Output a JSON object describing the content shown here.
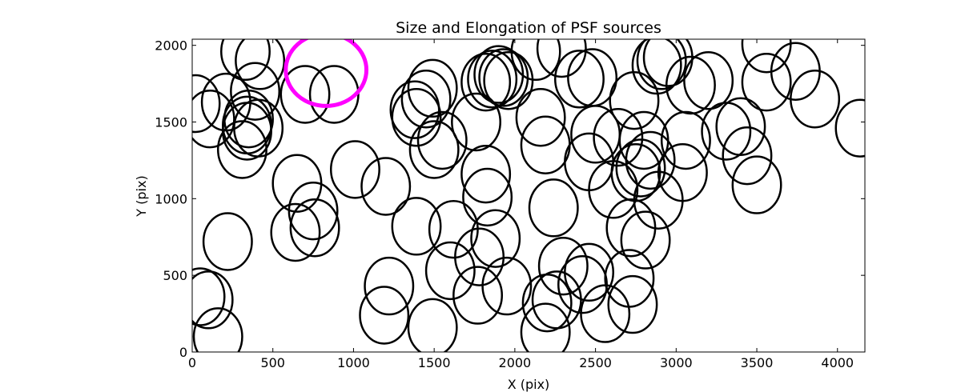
{
  "chart_data": {
    "type": "scatter",
    "marker": "ellipse",
    "title": "Size and Elongation of PSF sources",
    "xlabel": "X (pix)",
    "ylabel": "Y (pix)",
    "xlim": [
      0,
      4170
    ],
    "ylim": [
      0,
      2040
    ],
    "xticks": [
      0,
      500,
      1000,
      1500,
      2000,
      2500,
      3000,
      3500,
      4000
    ],
    "yticks": [
      0,
      500,
      1000,
      1500,
      2000
    ],
    "xtick_labels": [
      "0",
      "500",
      "1000",
      "1500",
      "2000",
      "2500",
      "3000",
      "3500",
      "4000"
    ],
    "ytick_labels": [
      "0",
      "500",
      "1000",
      "1500",
      "2000"
    ],
    "colors": {
      "sources": "#000000",
      "highlight": "#ff00ff"
    },
    "highlight": {
      "x": 830,
      "y": 1840,
      "w": 500,
      "h": 470
    },
    "sources": [
      {
        "x": 20,
        "y": 1620,
        "w": 300,
        "h": 370
      },
      {
        "x": 210,
        "y": 1630,
        "w": 300,
        "h": 370
      },
      {
        "x": 110,
        "y": 1520,
        "w": 300,
        "h": 370
      },
      {
        "x": 330,
        "y": 1960,
        "w": 300,
        "h": 370
      },
      {
        "x": 420,
        "y": 1900,
        "w": 300,
        "h": 370
      },
      {
        "x": 390,
        "y": 1700,
        "w": 300,
        "h": 370
      },
      {
        "x": 350,
        "y": 1520,
        "w": 300,
        "h": 370
      },
      {
        "x": 340,
        "y": 1480,
        "w": 300,
        "h": 370
      },
      {
        "x": 340,
        "y": 1440,
        "w": 300,
        "h": 370
      },
      {
        "x": 410,
        "y": 1460,
        "w": 300,
        "h": 370
      },
      {
        "x": 310,
        "y": 1320,
        "w": 300,
        "h": 370
      },
      {
        "x": 700,
        "y": 1680,
        "w": 300,
        "h": 370
      },
      {
        "x": 880,
        "y": 1680,
        "w": 300,
        "h": 370
      },
      {
        "x": 1010,
        "y": 1190,
        "w": 300,
        "h": 370
      },
      {
        "x": 650,
        "y": 1100,
        "w": 300,
        "h": 370
      },
      {
        "x": 750,
        "y": 920,
        "w": 300,
        "h": 370
      },
      {
        "x": 640,
        "y": 780,
        "w": 300,
        "h": 370
      },
      {
        "x": 760,
        "y": 810,
        "w": 300,
        "h": 370
      },
      {
        "x": 220,
        "y": 720,
        "w": 300,
        "h": 370
      },
      {
        "x": 50,
        "y": 360,
        "w": 300,
        "h": 370
      },
      {
        "x": 100,
        "y": 340,
        "w": 300,
        "h": 370
      },
      {
        "x": 160,
        "y": 100,
        "w": 300,
        "h": 370
      },
      {
        "x": 1200,
        "y": 1080,
        "w": 300,
        "h": 370
      },
      {
        "x": 1380,
        "y": 1580,
        "w": 300,
        "h": 370
      },
      {
        "x": 1390,
        "y": 1530,
        "w": 300,
        "h": 370
      },
      {
        "x": 1450,
        "y": 1650,
        "w": 300,
        "h": 370
      },
      {
        "x": 1490,
        "y": 1720,
        "w": 300,
        "h": 370
      },
      {
        "x": 1500,
        "y": 1320,
        "w": 300,
        "h": 370
      },
      {
        "x": 1550,
        "y": 1380,
        "w": 300,
        "h": 370
      },
      {
        "x": 1390,
        "y": 820,
        "w": 300,
        "h": 370
      },
      {
        "x": 1620,
        "y": 800,
        "w": 300,
        "h": 370
      },
      {
        "x": 1220,
        "y": 430,
        "w": 300,
        "h": 370
      },
      {
        "x": 1190,
        "y": 240,
        "w": 300,
        "h": 370
      },
      {
        "x": 1490,
        "y": 160,
        "w": 300,
        "h": 370
      },
      {
        "x": 1600,
        "y": 530,
        "w": 300,
        "h": 370
      },
      {
        "x": 1780,
        "y": 620,
        "w": 300,
        "h": 370
      },
      {
        "x": 1770,
        "y": 370,
        "w": 300,
        "h": 370
      },
      {
        "x": 1950,
        "y": 430,
        "w": 300,
        "h": 370
      },
      {
        "x": 1880,
        "y": 740,
        "w": 300,
        "h": 370
      },
      {
        "x": 1820,
        "y": 1160,
        "w": 300,
        "h": 370
      },
      {
        "x": 1830,
        "y": 1010,
        "w": 300,
        "h": 370
      },
      {
        "x": 1760,
        "y": 1500,
        "w": 300,
        "h": 370
      },
      {
        "x": 1820,
        "y": 1760,
        "w": 300,
        "h": 370
      },
      {
        "x": 1860,
        "y": 1780,
        "w": 300,
        "h": 370
      },
      {
        "x": 1900,
        "y": 1810,
        "w": 300,
        "h": 370
      },
      {
        "x": 1930,
        "y": 1790,
        "w": 300,
        "h": 370
      },
      {
        "x": 1960,
        "y": 1770,
        "w": 300,
        "h": 370
      },
      {
        "x": 2130,
        "y": 1960,
        "w": 300,
        "h": 370
      },
      {
        "x": 2290,
        "y": 1980,
        "w": 300,
        "h": 370
      },
      {
        "x": 2400,
        "y": 1780,
        "w": 300,
        "h": 370
      },
      {
        "x": 2480,
        "y": 1790,
        "w": 300,
        "h": 370
      },
      {
        "x": 2160,
        "y": 1530,
        "w": 300,
        "h": 370
      },
      {
        "x": 2190,
        "y": 1350,
        "w": 300,
        "h": 370
      },
      {
        "x": 2240,
        "y": 940,
        "w": 300,
        "h": 370
      },
      {
        "x": 2300,
        "y": 560,
        "w": 300,
        "h": 370
      },
      {
        "x": 2460,
        "y": 520,
        "w": 300,
        "h": 370
      },
      {
        "x": 2420,
        "y": 440,
        "w": 300,
        "h": 370
      },
      {
        "x": 2200,
        "y": 320,
        "w": 300,
        "h": 370
      },
      {
        "x": 2260,
        "y": 340,
        "w": 300,
        "h": 370
      },
      {
        "x": 2190,
        "y": 130,
        "w": 300,
        "h": 370
      },
      {
        "x": 2560,
        "y": 250,
        "w": 300,
        "h": 370
      },
      {
        "x": 2730,
        "y": 310,
        "w": 300,
        "h": 370
      },
      {
        "x": 2710,
        "y": 480,
        "w": 300,
        "h": 370
      },
      {
        "x": 2810,
        "y": 730,
        "w": 300,
        "h": 370
      },
      {
        "x": 2720,
        "y": 810,
        "w": 300,
        "h": 370
      },
      {
        "x": 2610,
        "y": 1060,
        "w": 300,
        "h": 370
      },
      {
        "x": 2460,
        "y": 1240,
        "w": 300,
        "h": 370
      },
      {
        "x": 2500,
        "y": 1420,
        "w": 300,
        "h": 370
      },
      {
        "x": 2640,
        "y": 1400,
        "w": 300,
        "h": 370
      },
      {
        "x": 2740,
        "y": 1640,
        "w": 300,
        "h": 370
      },
      {
        "x": 2800,
        "y": 1380,
        "w": 300,
        "h": 370
      },
      {
        "x": 2780,
        "y": 1200,
        "w": 300,
        "h": 370
      },
      {
        "x": 2750,
        "y": 1170,
        "w": 300,
        "h": 370
      },
      {
        "x": 2840,
        "y": 1250,
        "w": 300,
        "h": 370
      },
      {
        "x": 2890,
        "y": 990,
        "w": 300,
        "h": 370
      },
      {
        "x": 3040,
        "y": 1170,
        "w": 300,
        "h": 370
      },
      {
        "x": 3060,
        "y": 1380,
        "w": 300,
        "h": 370
      },
      {
        "x": 2880,
        "y": 1870,
        "w": 300,
        "h": 370
      },
      {
        "x": 2910,
        "y": 1900,
        "w": 300,
        "h": 370
      },
      {
        "x": 2950,
        "y": 1920,
        "w": 300,
        "h": 370
      },
      {
        "x": 3090,
        "y": 1740,
        "w": 300,
        "h": 370
      },
      {
        "x": 3200,
        "y": 1770,
        "w": 300,
        "h": 370
      },
      {
        "x": 3310,
        "y": 1440,
        "w": 300,
        "h": 370
      },
      {
        "x": 3400,
        "y": 1470,
        "w": 300,
        "h": 370
      },
      {
        "x": 3440,
        "y": 1280,
        "w": 300,
        "h": 370
      },
      {
        "x": 3500,
        "y": 1090,
        "w": 300,
        "h": 370
      },
      {
        "x": 3560,
        "y": 2010,
        "w": 300,
        "h": 370
      },
      {
        "x": 3560,
        "y": 1760,
        "w": 300,
        "h": 370
      },
      {
        "x": 3740,
        "y": 1830,
        "w": 300,
        "h": 370
      },
      {
        "x": 3860,
        "y": 1650,
        "w": 300,
        "h": 370
      },
      {
        "x": 4140,
        "y": 1460,
        "w": 300,
        "h": 370
      }
    ]
  }
}
